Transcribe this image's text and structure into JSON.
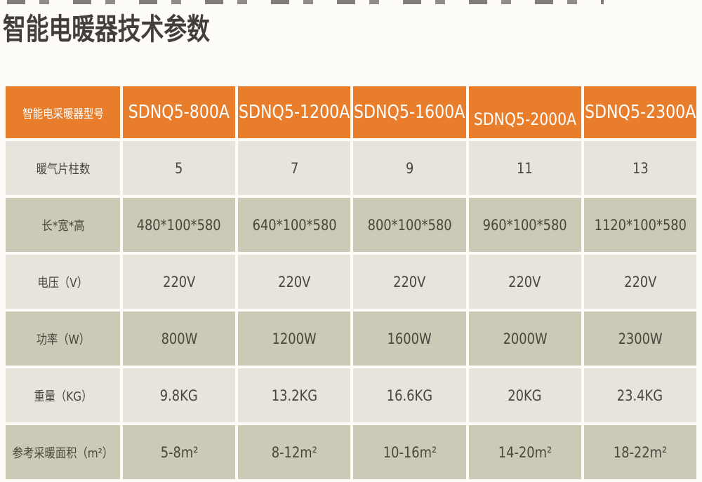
{
  "page": {
    "title": "智能电暖器技术参数"
  },
  "colors": {
    "header_bg": "#e87e2b",
    "header_text": "#ffffff",
    "row_light_bg": "#e7e4dc",
    "row_dark_bg": "#cbcab7",
    "body_text": "#4b453e",
    "title_text": "#443e3a",
    "page_bg": "#fdfcf8"
  },
  "table": {
    "header": {
      "label": "智能电采暖器型号",
      "models": [
        "SDNQ5-800A",
        "SDNQ5-1200A",
        "SDNQ5-1600A",
        "SDNQ5-2000A",
        "SDNQ5-2300A"
      ]
    },
    "rows": [
      {
        "label": "暖气片柱数",
        "values": [
          "5",
          "7",
          "9",
          "11",
          "13"
        ]
      },
      {
        "label": "长*宽*高",
        "values": [
          "480*100*580",
          "640*100*580",
          "800*100*580",
          "960*100*580",
          "1120*100*580"
        ]
      },
      {
        "label": "电压（V）",
        "values": [
          "220V",
          "220V",
          "220V",
          "220V",
          "220V"
        ]
      },
      {
        "label": "功率（W）",
        "values": [
          "800W",
          "1200W",
          "1600W",
          "2000W",
          "2300W"
        ]
      },
      {
        "label": "重量（KG）",
        "values": [
          "9.8KG",
          "13.2KG",
          "16.6KG",
          "20KG",
          "23.4KG"
        ]
      },
      {
        "label": "参考采暖面积（m²）",
        "values": [
          "5-8m²",
          "8-12m²",
          "10-16m²",
          "14-20m²",
          "18-22m²"
        ]
      }
    ]
  }
}
